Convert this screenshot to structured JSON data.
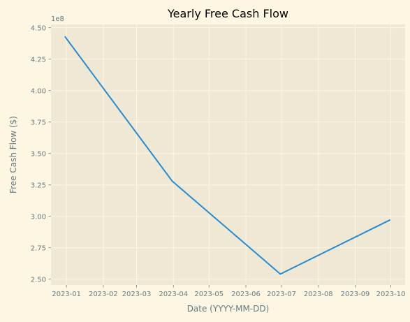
{
  "chart_data": {
    "type": "line",
    "title": "Yearly Free Cash Flow",
    "xlabel": "Date (YYYY-MM-DD)",
    "ylabel": "Free Cash Flow ($)",
    "y_offset_label": "1e8",
    "x_ticks": [
      {
        "date": "2023-01-01",
        "label": "2023-01"
      },
      {
        "date": "2023-02-01",
        "label": "2023-02"
      },
      {
        "date": "2023-03-01",
        "label": "2023-03"
      },
      {
        "date": "2023-04-01",
        "label": "2023-04"
      },
      {
        "date": "2023-05-01",
        "label": "2023-05"
      },
      {
        "date": "2023-06-01",
        "label": "2023-06"
      },
      {
        "date": "2023-07-01",
        "label": "2023-07"
      },
      {
        "date": "2023-08-01",
        "label": "2023-08"
      },
      {
        "date": "2023-09-01",
        "label": "2023-09"
      },
      {
        "date": "2023-10-01",
        "label": "2023-10"
      }
    ],
    "y_ticks": [
      {
        "value": 250000000,
        "label": "2.50"
      },
      {
        "value": 275000000,
        "label": "2.75"
      },
      {
        "value": 300000000,
        "label": "3.00"
      },
      {
        "value": 325000000,
        "label": "3.25"
      },
      {
        "value": 350000000,
        "label": "3.50"
      },
      {
        "value": 375000000,
        "label": "3.75"
      },
      {
        "value": 400000000,
        "label": "4.00"
      },
      {
        "value": 425000000,
        "label": "4.25"
      },
      {
        "value": 450000000,
        "label": "4.50"
      }
    ],
    "xlim": [
      "2022-12-19",
      "2023-10-13"
    ],
    "ylim": [
      245400000,
      452600000
    ],
    "grid": true,
    "series": [
      {
        "color": "#268bd2",
        "points": [
          {
            "x": "2022-12-31",
            "y": 442600000
          },
          {
            "x": "2023-03-31",
            "y": 328000000
          },
          {
            "x": "2023-06-30",
            "y": 254100000
          },
          {
            "x": "2023-09-30",
            "y": 297000000
          }
        ]
      }
    ],
    "background": "#fdf6e3",
    "plot_background": "#eee8d5",
    "grid_color": "#fdf6e3",
    "text_color": "#657b83"
  }
}
